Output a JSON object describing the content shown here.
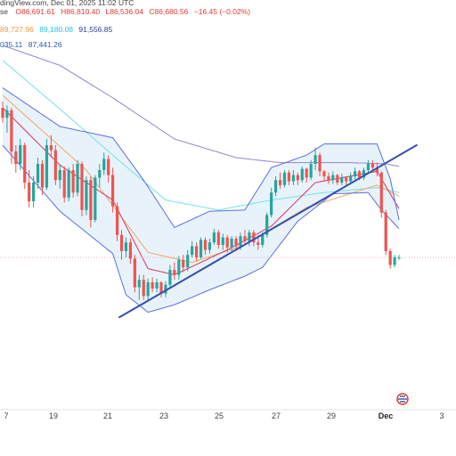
{
  "header": {
    "source_fragment": "dingView.com, Dec 01, 2025 11:02 UTC",
    "ohlc_prefix": "se",
    "open": "O86,691.61",
    "high": "H86,810.40",
    "low": "L86,536.04",
    "close": "C86,680.56",
    "change": "−16.45 (−0.02%)",
    "ma_values_row1": [
      "89,727.96",
      "89,180.08",
      "91,556.85"
    ],
    "ma_values_row2": [
      "035.11",
      "87,441.26"
    ]
  },
  "colors": {
    "background": "#ffffff",
    "up_candle": "#26a69a",
    "down_candle": "#ef5350",
    "bollinger_line": "#5b6ee1",
    "bollinger_fill": "#e8f2fb",
    "trendline": "#3550b0",
    "ma_short": "#d9476a",
    "ma_mid": "#f2ad6b",
    "ma_long_cyan": "#7fe3e8",
    "ma_long_purple": "#9a8fd8",
    "price_line": "#ef9a9a",
    "legend_orange": "#f09a3e",
    "legend_cyan": "#26c6da",
    "legend_blue": "#2a5db0",
    "legend_red": "#e53935"
  },
  "chart_data": {
    "type": "candlestick",
    "title": "",
    "x_tick_labels": [
      "7",
      "19",
      "21",
      "23",
      "25",
      "27",
      "29",
      "Dec",
      "3"
    ],
    "candles": [
      [
        1,
        96.0,
        96.5,
        94.8,
        95.2
      ],
      [
        2,
        95.2,
        96.2,
        94.0,
        95.8
      ],
      [
        3,
        95.8,
        96.0,
        91.5,
        92.5
      ],
      [
        4,
        92.5,
        93.0,
        90.8,
        91.5
      ],
      [
        5,
        91.5,
        93.5,
        91.0,
        93.0
      ],
      [
        6,
        93.0,
        93.2,
        89.5,
        90.0
      ],
      [
        7,
        90.0,
        91.0,
        88.0,
        88.5
      ],
      [
        8,
        88.5,
        90.5,
        88.0,
        90.0
      ],
      [
        9,
        90.0,
        92.0,
        89.5,
        91.5
      ],
      [
        10,
        91.5,
        91.8,
        89.0,
        89.6
      ],
      [
        11,
        89.6,
        93.5,
        89.4,
        93.0
      ],
      [
        12,
        93.0,
        93.8,
        92.0,
        92.6
      ],
      [
        13,
        92.6,
        93.0,
        89.8,
        90.2
      ],
      [
        14,
        90.2,
        91.4,
        89.5,
        91.0
      ],
      [
        15,
        91.0,
        91.3,
        88.4,
        88.8
      ],
      [
        16,
        88.8,
        91.2,
        88.5,
        91.0
      ],
      [
        17,
        91.0,
        91.5,
        88.8,
        89.2
      ],
      [
        18,
        89.2,
        91.8,
        88.9,
        91.5
      ],
      [
        19,
        91.5,
        91.7,
        87.3,
        87.8
      ],
      [
        20,
        87.8,
        90.5,
        87.4,
        90.2
      ],
      [
        21,
        90.2,
        90.5,
        86.4,
        87.0
      ],
      [
        22,
        87.0,
        90.6,
        86.8,
        90.4
      ],
      [
        23,
        90.4,
        91.5,
        89.6,
        91.0
      ],
      [
        24,
        91.0,
        92.4,
        90.6,
        91.9
      ],
      [
        25,
        91.9,
        92.2,
        90.0,
        90.6
      ],
      [
        26,
        90.6,
        91.2,
        87.6,
        88.1
      ],
      [
        27,
        88.1,
        88.4,
        85.3,
        85.8
      ],
      [
        28,
        85.8,
        86.2,
        83.8,
        84.5
      ],
      [
        29,
        84.5,
        85.6,
        84.0,
        85.2
      ],
      [
        30,
        85.2,
        85.5,
        83.5,
        83.9
      ],
      [
        31,
        83.9,
        84.2,
        81.2,
        81.6
      ],
      [
        32,
        81.6,
        82.6,
        80.6,
        82.2
      ],
      [
        33,
        82.2,
        82.6,
        80.6,
        80.9
      ],
      [
        34,
        80.9,
        82.3,
        80.6,
        82.0
      ],
      [
        35,
        82.0,
        82.4,
        81.2,
        81.5
      ],
      [
        36,
        81.5,
        82.3,
        81.2,
        82.0
      ],
      [
        37,
        82.0,
        82.1,
        80.8,
        81.1
      ],
      [
        38,
        81.1,
        82.1,
        80.8,
        81.8
      ],
      [
        39,
        81.8,
        83.4,
        81.6,
        83.0
      ],
      [
        40,
        83.0,
        83.6,
        82.2,
        82.6
      ],
      [
        41,
        82.6,
        84.1,
        82.2,
        83.8
      ],
      [
        42,
        83.8,
        84.2,
        82.8,
        83.2
      ],
      [
        43,
        83.2,
        84.6,
        82.9,
        84.2
      ],
      [
        44,
        84.2,
        85.3,
        84.0,
        84.9
      ],
      [
        45,
        84.9,
        85.2,
        83.7,
        84.0
      ],
      [
        46,
        84.0,
        85.6,
        83.9,
        85.4
      ],
      [
        47,
        85.4,
        85.6,
        84.2,
        84.6
      ],
      [
        48,
        84.6,
        85.5,
        84.3,
        85.2
      ],
      [
        49,
        85.2,
        86.3,
        85.0,
        86.0
      ],
      [
        50,
        86.0,
        86.2,
        84.7,
        85.0
      ],
      [
        51,
        85.0,
        85.9,
        84.6,
        85.6
      ],
      [
        52,
        85.6,
        85.8,
        84.4,
        84.8
      ],
      [
        53,
        84.8,
        85.7,
        84.4,
        85.5
      ],
      [
        54,
        85.5,
        85.7,
        84.5,
        84.9
      ],
      [
        55,
        84.9,
        86.0,
        84.6,
        85.7
      ],
      [
        56,
        85.7,
        86.2,
        85.0,
        85.3
      ],
      [
        57,
        85.3,
        86.2,
        84.9,
        86.0
      ],
      [
        58,
        86.0,
        86.2,
        84.9,
        85.2
      ],
      [
        59,
        85.2,
        85.8,
        84.6,
        85.0
      ],
      [
        60,
        85.0,
        86.0,
        84.8,
        85.8
      ],
      [
        61,
        85.8,
        87.6,
        85.6,
        87.4
      ],
      [
        62,
        87.4,
        89.6,
        87.2,
        89.2
      ],
      [
        63,
        89.2,
        90.5,
        88.9,
        90.2
      ],
      [
        64,
        90.2,
        90.8,
        89.5,
        89.8
      ],
      [
        65,
        89.8,
        91.0,
        89.6,
        90.8
      ],
      [
        66,
        90.8,
        91.0,
        89.8,
        90.1
      ],
      [
        67,
        90.1,
        91.0,
        89.8,
        90.6
      ],
      [
        68,
        90.6,
        90.8,
        89.8,
        90.2
      ],
      [
        69,
        90.2,
        91.3,
        90.0,
        91.1
      ],
      [
        70,
        91.1,
        91.2,
        90.0,
        90.4
      ],
      [
        71,
        90.4,
        91.8,
        90.2,
        91.5
      ],
      [
        72,
        91.5,
        92.8,
        91.0,
        92.2
      ],
      [
        73,
        92.2,
        92.4,
        90.5,
        90.9
      ],
      [
        74,
        90.9,
        91.0,
        90.1,
        90.5
      ],
      [
        75,
        90.5,
        90.8,
        89.9,
        90.2
      ],
      [
        76,
        90.2,
        90.9,
        89.9,
        90.6
      ],
      [
        77,
        90.6,
        90.7,
        89.8,
        90.0
      ],
      [
        78,
        90.0,
        90.7,
        89.8,
        90.4
      ],
      [
        79,
        90.4,
        90.5,
        89.8,
        90.1
      ],
      [
        80,
        90.1,
        90.8,
        89.9,
        90.5
      ],
      [
        81,
        90.5,
        91.2,
        90.2,
        90.9
      ],
      [
        82,
        90.9,
        91.0,
        90.2,
        90.4
      ],
      [
        83,
        90.4,
        91.2,
        90.2,
        91.0
      ],
      [
        84,
        91.0,
        91.8,
        90.8,
        91.5
      ],
      [
        85,
        91.5,
        91.8,
        90.9,
        91.2
      ],
      [
        86,
        91.2,
        91.6,
        90.5,
        90.8
      ],
      [
        87,
        90.8,
        90.9,
        87.2,
        87.6
      ],
      [
        88,
        87.6,
        87.8,
        84.2,
        84.5
      ],
      [
        89,
        84.5,
        84.7,
        83.1,
        83.4
      ],
      [
        90,
        83.4,
        84.2,
        83.2,
        84.0
      ],
      [
        91,
        84.0,
        84.2,
        83.8,
        84.0
      ]
    ],
    "bollinger_upper": [
      [
        1,
        97.6
      ],
      [
        14,
        94.5
      ],
      [
        26,
        93.6
      ],
      [
        33,
        90.2
      ],
      [
        40,
        86.4
      ],
      [
        48,
        87.7
      ],
      [
        56,
        87.8
      ],
      [
        62,
        91.2
      ],
      [
        70,
        92.2
      ],
      [
        74,
        93.1
      ],
      [
        86,
        93.1
      ],
      [
        89,
        90.3
      ],
      [
        91,
        87.0
      ]
    ],
    "bollinger_lower": [
      [
        1,
        93.0
      ],
      [
        14,
        87.7
      ],
      [
        26,
        84.3
      ],
      [
        29,
        81.0
      ],
      [
        34,
        79.6
      ],
      [
        40,
        80.2
      ],
      [
        48,
        81.4
      ],
      [
        56,
        82.5
      ],
      [
        60,
        83.2
      ],
      [
        68,
        86.9
      ],
      [
        76,
        89.1
      ],
      [
        84,
        89.2
      ],
      [
        87,
        87.8
      ],
      [
        91,
        86.3
      ]
    ],
    "trendline": [
      [
        27.5,
        79.2
      ],
      [
        95.0,
        93.0
      ]
    ],
    "ma_short": [
      [
        1,
        96.0
      ],
      [
        14,
        91.4
      ],
      [
        26,
        88.6
      ],
      [
        34,
        83.1
      ],
      [
        40,
        82.6
      ],
      [
        52,
        84.6
      ],
      [
        62,
        86.5
      ],
      [
        72,
        90.0
      ],
      [
        86,
        90.9
      ],
      [
        91,
        87.9
      ]
    ],
    "ma_mid": [
      [
        1,
        97.0
      ],
      [
        20,
        91.0
      ],
      [
        34,
        84.4
      ],
      [
        44,
        83.6
      ],
      [
        56,
        85.0
      ],
      [
        70,
        88.0
      ],
      [
        86,
        89.8
      ],
      [
        91,
        88.9
      ]
    ],
    "ma_long_cyan": [
      [
        1,
        99.8
      ],
      [
        14,
        95.9
      ],
      [
        26,
        92.2
      ],
      [
        38,
        88.6
      ],
      [
        50,
        87.8
      ],
      [
        62,
        88.6
      ],
      [
        74,
        89.2
      ],
      [
        86,
        89.6
      ],
      [
        91,
        89.2
      ]
    ],
    "ma_long_purple": [
      [
        1,
        101.0
      ],
      [
        14,
        99.4
      ],
      [
        26,
        96.8
      ],
      [
        40,
        93.5
      ],
      [
        54,
        92.0
      ],
      [
        64,
        91.6
      ],
      [
        80,
        91.6
      ],
      [
        88,
        91.5
      ],
      [
        91,
        91.3
      ]
    ],
    "last_price_line": 84.0,
    "grid": false,
    "legend": "top-left"
  }
}
